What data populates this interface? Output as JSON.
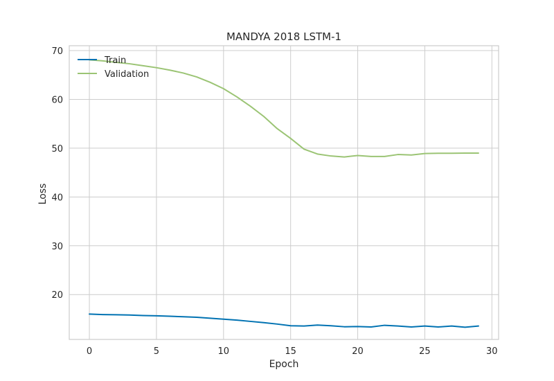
{
  "chart_data": {
    "type": "line",
    "title": "MANDYA 2018 LSTM-1",
    "xlabel": "Epoch",
    "ylabel": "Loss",
    "xlim": [
      -1.5,
      30.5
    ],
    "ylim": [
      10.8,
      71
    ],
    "xticks": [
      0,
      5,
      10,
      15,
      20,
      25,
      30
    ],
    "yticks": [
      20,
      30,
      40,
      50,
      60,
      70
    ],
    "grid": true,
    "legend_position": "top-left",
    "x": [
      0,
      1,
      2,
      3,
      4,
      5,
      6,
      7,
      8,
      9,
      10,
      11,
      12,
      13,
      14,
      15,
      16,
      17,
      18,
      19,
      20,
      21,
      22,
      23,
      24,
      25,
      26,
      27,
      28,
      29
    ],
    "series": [
      {
        "name": "Train",
        "color": "#0072B2",
        "values": [
          16.0,
          15.9,
          15.85,
          15.8,
          15.7,
          15.65,
          15.55,
          15.45,
          15.35,
          15.15,
          14.95,
          14.75,
          14.5,
          14.25,
          13.95,
          13.6,
          13.55,
          13.75,
          13.6,
          13.4,
          13.45,
          13.35,
          13.7,
          13.55,
          13.35,
          13.55,
          13.35,
          13.55,
          13.3,
          13.55
        ]
      },
      {
        "name": "Validation",
        "color": "#9BC474",
        "values": [
          68.1,
          67.9,
          67.6,
          67.3,
          66.9,
          66.5,
          66.0,
          65.4,
          64.6,
          63.5,
          62.2,
          60.5,
          58.6,
          56.5,
          54.0,
          52.0,
          49.8,
          48.8,
          48.4,
          48.2,
          48.5,
          48.3,
          48.3,
          48.7,
          48.6,
          48.9,
          48.95,
          48.95,
          49.0,
          49.0
        ]
      }
    ]
  }
}
